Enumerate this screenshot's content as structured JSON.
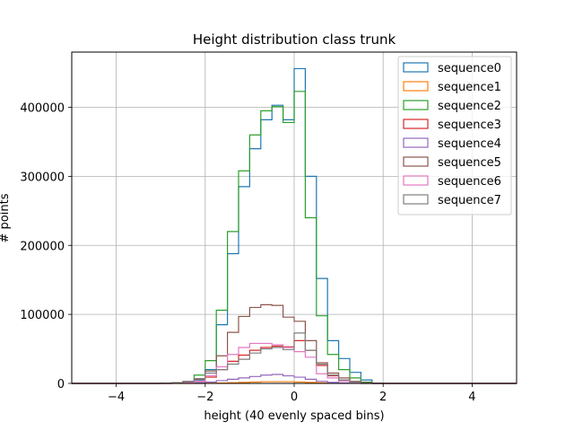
{
  "chart_data": {
    "type": "histogram",
    "title": "Height distribution class trunk",
    "xlabel": "height (40 evenly spaced bins)",
    "ylabel": "# points",
    "xlim": [
      -5,
      5
    ],
    "ylim": [
      0,
      480000
    ],
    "grid": true,
    "legend_position": "upper right",
    "xticks": [
      -4,
      -2,
      0,
      2,
      4
    ],
    "xtick_labels": [
      "−4",
      "−2",
      "0",
      "2",
      "4"
    ],
    "yticks": [
      0,
      100000,
      200000,
      300000,
      400000
    ],
    "ytick_labels": [
      "0",
      "100000",
      "200000",
      "300000",
      "400000"
    ],
    "bin_edges": [
      -5.0,
      -4.75,
      -4.5,
      -4.25,
      -4.0,
      -3.75,
      -3.5,
      -3.25,
      -3.0,
      -2.75,
      -2.5,
      -2.25,
      -2.0,
      -1.75,
      -1.5,
      -1.25,
      -1.0,
      -0.75,
      -0.5,
      -0.25,
      0.0,
      0.25,
      0.5,
      0.75,
      1.0,
      1.25,
      1.5,
      1.75,
      2.0,
      2.25,
      2.5,
      2.75,
      3.0,
      3.25,
      3.5,
      3.75,
      4.0,
      4.25,
      4.5,
      4.75,
      5.0
    ],
    "series": [
      {
        "name": "sequence0",
        "color": "#1f77b4",
        "values": [
          0,
          0,
          0,
          0,
          0,
          0,
          0,
          0,
          500,
          1000,
          2000,
          5000,
          20000,
          85000,
          188000,
          285000,
          340000,
          382000,
          403000,
          382000,
          456000,
          300000,
          152000,
          62000,
          36000,
          16000,
          5000,
          500,
          0,
          0,
          0,
          0,
          0,
          0,
          0,
          0,
          0,
          0,
          0,
          0
        ]
      },
      {
        "name": "sequence1",
        "color": "#ff7f0e",
        "values": [
          0,
          0,
          0,
          0,
          0,
          0,
          0,
          0,
          0,
          0,
          0,
          0,
          300,
          600,
          1000,
          1500,
          2000,
          2500,
          2500,
          2500,
          2000,
          1500,
          800,
          400,
          200,
          100,
          0,
          0,
          0,
          0,
          0,
          0,
          0,
          0,
          0,
          0,
          0,
          0,
          0,
          0
        ]
      },
      {
        "name": "sequence2",
        "color": "#2ca02c",
        "values": [
          0,
          0,
          0,
          0,
          0,
          0,
          0,
          0,
          500,
          1000,
          3000,
          12000,
          33000,
          106000,
          220000,
          308000,
          360000,
          395000,
          401000,
          378000,
          423000,
          240000,
          98000,
          42000,
          20000,
          8000,
          2000,
          500,
          0,
          0,
          0,
          0,
          0,
          0,
          0,
          0,
          0,
          0,
          0,
          0
        ]
      },
      {
        "name": "sequence3",
        "color": "#d62728",
        "values": [
          0,
          0,
          0,
          0,
          0,
          0,
          0,
          0,
          0,
          300,
          1000,
          3000,
          9000,
          20000,
          32000,
          41000,
          48000,
          52000,
          54000,
          53000,
          62000,
          48000,
          26000,
          11000,
          5000,
          2000,
          500,
          0,
          0,
          0,
          0,
          0,
          0,
          0,
          0,
          0,
          0,
          0,
          0,
          0
        ]
      },
      {
        "name": "sequence4",
        "color": "#9467bd",
        "values": [
          0,
          0,
          0,
          0,
          0,
          0,
          0,
          0,
          0,
          100,
          300,
          1000,
          2000,
          4000,
          6000,
          8000,
          10000,
          12000,
          13000,
          11000,
          9000,
          6000,
          3000,
          1500,
          500,
          200,
          0,
          0,
          0,
          0,
          0,
          0,
          0,
          0,
          0,
          0,
          0,
          0,
          0,
          0
        ]
      },
      {
        "name": "sequence5",
        "color": "#8c564b",
        "values": [
          0,
          0,
          0,
          0,
          0,
          0,
          0,
          0,
          300,
          1000,
          3000,
          6000,
          18000,
          40000,
          74000,
          97000,
          110000,
          114000,
          113000,
          96000,
          90000,
          62000,
          30000,
          15000,
          8000,
          3000,
          1000,
          0,
          0,
          0,
          0,
          0,
          0,
          0,
          0,
          0,
          0,
          0,
          0,
          0
        ]
      },
      {
        "name": "sequence6",
        "color": "#e377c2",
        "values": [
          0,
          0,
          0,
          0,
          0,
          0,
          0,
          0,
          0,
          300,
          1000,
          3000,
          11000,
          24000,
          42000,
          52000,
          58000,
          58000,
          56000,
          52000,
          46000,
          38000,
          14000,
          8000,
          3000,
          1000,
          200,
          0,
          0,
          0,
          0,
          0,
          0,
          0,
          0,
          0,
          0,
          0,
          0,
          0
        ]
      },
      {
        "name": "sequence7",
        "color": "#7f7f7f",
        "values": [
          0,
          0,
          0,
          0,
          0,
          0,
          0,
          0,
          300,
          1000,
          3000,
          7000,
          15000,
          20000,
          28000,
          35000,
          44000,
          50000,
          52000,
          49000,
          73000,
          48000,
          28000,
          12000,
          5000,
          2000,
          500,
          0,
          0,
          0,
          0,
          0,
          0,
          0,
          0,
          0,
          0,
          0,
          0,
          0
        ]
      }
    ]
  }
}
